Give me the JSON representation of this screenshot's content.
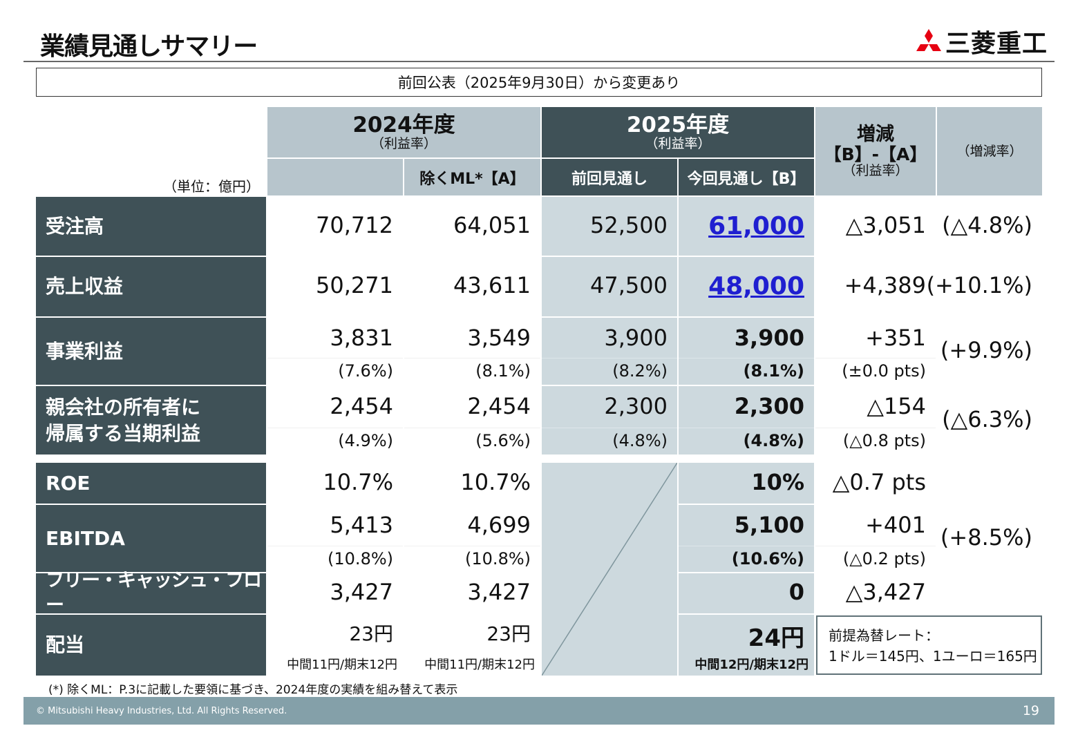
{
  "header": {
    "title": "業績見通しサマリー",
    "logo_text": "三菱重工",
    "brand_color": "#e60012"
  },
  "notice": "前回公表（2025年9月30日）から変更あり",
  "table": {
    "unit": "（単位：億円）",
    "col_headers": {
      "fy2024": "2024年度",
      "fy2024_sub": "（利益率）",
      "fy2024_exml": "除くML*【A】",
      "fy2025": "2025年度",
      "fy2025_sub": "（利益率）",
      "fy2025_prev": "前回見通し",
      "fy2025_curr": "今回見通し【B】",
      "diff": "増減",
      "diff_formula": "【B】-【A】",
      "diff_sub": "（利益率）",
      "rate": "（増減率）"
    },
    "rows": [
      {
        "label": "受注高",
        "cells": [
          [
            "70,712",
            ""
          ],
          [
            "64,051",
            ""
          ],
          [
            "52,500",
            ""
          ],
          [
            "61,000",
            ""
          ],
          [
            "△3,051",
            ""
          ],
          [
            "(△4.8%)",
            ""
          ]
        ]
      },
      {
        "label": "売上収益",
        "cells": [
          [
            "50,271",
            ""
          ],
          [
            "43,611",
            ""
          ],
          [
            "47,500",
            ""
          ],
          [
            "48,000",
            ""
          ],
          [
            "+4,389",
            ""
          ],
          [
            "(+10.1%)",
            ""
          ]
        ]
      },
      {
        "label": "事業利益",
        "cells": [
          [
            "3,831",
            "(7.6%)"
          ],
          [
            "3,549",
            "(8.1%)"
          ],
          [
            "3,900",
            "(8.2%)"
          ],
          [
            "3,900",
            "(8.1%)"
          ],
          [
            "+351",
            "(±0.0 pts)"
          ],
          [
            "(+9.9%)",
            ""
          ]
        ]
      },
      {
        "label": "親会社の所有者に\n帰属する当期利益",
        "cells": [
          [
            "2,454",
            "(4.9%)"
          ],
          [
            "2,454",
            "(5.6%)"
          ],
          [
            "2,300",
            "(4.8%)"
          ],
          [
            "2,300",
            "(4.8%)"
          ],
          [
            "△154",
            "(△0.8 pts)"
          ],
          [
            "(△6.3%)",
            ""
          ]
        ]
      },
      {
        "label": "ROE",
        "cells": [
          [
            "10.7%",
            ""
          ],
          [
            "10.7%",
            ""
          ],
          [
            "",
            ""
          ],
          [
            "10%",
            ""
          ],
          [
            "△0.7 pts",
            ""
          ],
          [
            "",
            ""
          ]
        ]
      },
      {
        "label": "EBITDA",
        "cells": [
          [
            "5,413",
            "(10.8%)"
          ],
          [
            "4,699",
            "(10.8%)"
          ],
          [
            "",
            ""
          ],
          [
            "5,100",
            "(10.6%)"
          ],
          [
            "+401",
            "(△0.2 pts)"
          ],
          [
            "(+8.5%)",
            ""
          ]
        ]
      },
      {
        "label": "フリー・キャッシュ・フロー",
        "cells": [
          [
            "3,427",
            ""
          ],
          [
            "3,427",
            ""
          ],
          [
            "",
            ""
          ],
          [
            "0",
            ""
          ],
          [
            "△3,427",
            ""
          ],
          [
            "",
            ""
          ]
        ]
      },
      {
        "label": "配当",
        "cells": [
          [
            "23円",
            "中間11円/期末12円"
          ],
          [
            "23円",
            "中間11円/期末12円"
          ],
          [
            "",
            ""
          ],
          [
            "24円",
            "中間12円/期末12円"
          ],
          [
            "",
            ""
          ],
          [
            "",
            ""
          ]
        ]
      }
    ],
    "fx_note": {
      "line1": "前提為替レート：",
      "line2": "1ドル＝145円、1ユーロ＝165円"
    }
  },
  "footnote": "(*) 除くML：P.3に記載した要領に基づき、2024年度の実績を組み替えて表示",
  "footer": {
    "copyright": "© Mitsubishi Heavy Industries, Ltd.  All Rights Reserved.",
    "page": "19"
  },
  "colors": {
    "dark": "#3f5157",
    "header_light": "#b7c5cc",
    "cell_light": "#cdd9de",
    "highlight_blue": "#1f1fd0",
    "footer": "#84a0a9"
  }
}
